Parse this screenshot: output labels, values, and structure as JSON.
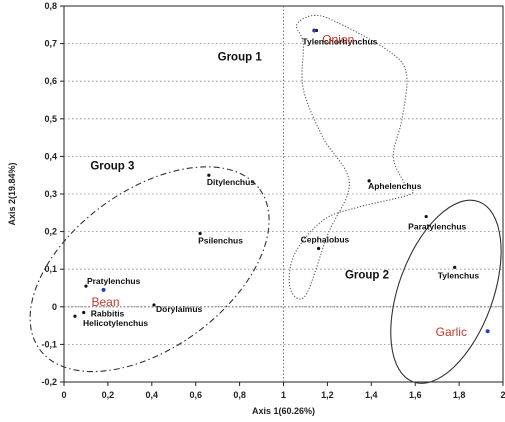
{
  "chart_data": {
    "type": "scatter",
    "xlabel": "Axis 1(60.26%)",
    "ylabel": "Axis 2(19.84%)",
    "xlim": [
      0,
      2
    ],
    "ylim": [
      -0.2,
      0.8
    ],
    "x_ticks": [
      "0",
      "0,2",
      "0,4",
      "0,6",
      "0,8",
      "1",
      "1,2",
      "1,4",
      "1,6",
      "1,8",
      "2"
    ],
    "y_ticks": [
      "-0,2",
      "-0,1",
      "0",
      "0,1",
      "0,2",
      "0,3",
      "0,4",
      "0,5",
      "0,6",
      "0,7",
      "0,8"
    ],
    "reference_lines": {
      "x": 1,
      "y": 0
    },
    "nematodes": [
      {
        "name": "Tylenchorhynchus",
        "x": 1.15,
        "y": 0.735
      },
      {
        "name": "Ditylenchus",
        "x": 0.66,
        "y": 0.35
      },
      {
        "name": "Aphelenchus",
        "x": 1.39,
        "y": 0.335
      },
      {
        "name": "Psilenchus",
        "x": 0.62,
        "y": 0.195
      },
      {
        "name": "Cephalobus",
        "x": 1.16,
        "y": 0.155
      },
      {
        "name": "Paratylenchus",
        "x": 1.65,
        "y": 0.24
      },
      {
        "name": "Tylenchus",
        "x": 1.78,
        "y": 0.105
      },
      {
        "name": "Pratylenchus",
        "x": 0.1,
        "y": 0.055
      },
      {
        "name": "Rabbitis",
        "x": 0.09,
        "y": -0.015
      },
      {
        "name": "Dorylaimus",
        "x": 0.41,
        "y": 0.005
      },
      {
        "name": "Helicotylenchus",
        "x": 0.05,
        "y": -0.025
      }
    ],
    "hosts": [
      {
        "name": "Onion",
        "x": 1.14,
        "y": 0.735,
        "color": "#c0392b"
      },
      {
        "name": "Bean",
        "x": 0.18,
        "y": 0.045,
        "color": "#c0392b"
      },
      {
        "name": "Garlic",
        "x": 1.93,
        "y": -0.065,
        "color": "#c0392b"
      }
    ],
    "host_marker_color": "#2a3db0",
    "groups": [
      {
        "name": "Group 1",
        "label_x": 0.7,
        "label_y": 0.655
      },
      {
        "name": "Group 2",
        "label_x": 1.28,
        "label_y": 0.075
      },
      {
        "name": "Group 3",
        "label_x": 0.12,
        "label_y": 0.365
      }
    ],
    "outlines": [
      {
        "group": "Group 1",
        "style": "dotted",
        "path": [
          [
            1.14,
            0.775
          ],
          [
            1.25,
            0.755
          ],
          [
            1.48,
            0.68
          ],
          [
            1.56,
            0.62
          ],
          [
            1.54,
            0.5
          ],
          [
            1.5,
            0.4
          ],
          [
            1.55,
            0.33
          ],
          [
            1.58,
            0.3
          ],
          [
            1.34,
            0.265
          ],
          [
            1.18,
            0.23
          ],
          [
            1.05,
            0.14
          ],
          [
            1.03,
            0.05
          ],
          [
            1.1,
            0.03
          ],
          [
            1.2,
            0.19
          ],
          [
            1.3,
            0.33
          ],
          [
            1.18,
            0.45
          ],
          [
            1.09,
            0.58
          ],
          [
            1.09,
            0.7
          ],
          [
            1.06,
            0.75
          ]
        ]
      },
      {
        "group": "Group 2",
        "style": "solid",
        "ellipse": {
          "cx": 1.74,
          "cy": 0.04,
          "rx": 0.215,
          "ry": 0.255,
          "rotate": 20
        }
      },
      {
        "group": "Group 3",
        "style": "dashdot",
        "ellipse": {
          "cx": 0.39,
          "cy": 0.1,
          "rx": 0.62,
          "ry": 0.21,
          "rotate": -36
        }
      }
    ]
  }
}
